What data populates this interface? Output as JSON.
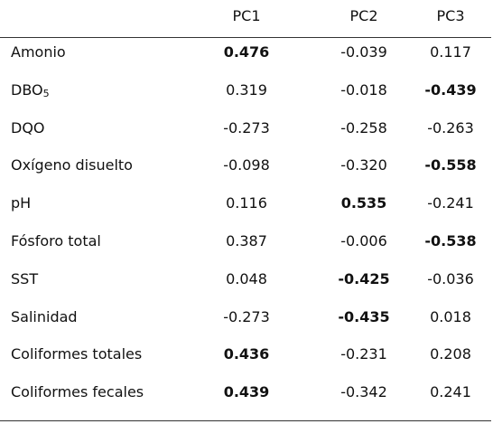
{
  "table": {
    "columns": [
      "",
      "PC1",
      "PC2",
      "PC3"
    ],
    "rows": [
      {
        "label": "Amonio",
        "sub": "",
        "values": [
          "0.476",
          "-0.039",
          "0.117"
        ],
        "bold": [
          true,
          false,
          false
        ]
      },
      {
        "label": "DBO",
        "sub": "5",
        "values": [
          "0.319",
          "-0.018",
          "-0.439"
        ],
        "bold": [
          false,
          false,
          true
        ]
      },
      {
        "label": "DQO",
        "sub": "",
        "values": [
          "-0.273",
          "-0.258",
          "-0.263"
        ],
        "bold": [
          false,
          false,
          false
        ]
      },
      {
        "label": "Oxígeno disuelto",
        "sub": "",
        "values": [
          "-0.098",
          "-0.320",
          "-0.558"
        ],
        "bold": [
          false,
          false,
          true
        ]
      },
      {
        "label": "pH",
        "sub": "",
        "values": [
          "0.116",
          "0.535",
          "-0.241"
        ],
        "bold": [
          false,
          true,
          false
        ]
      },
      {
        "label": "Fósforo total",
        "sub": "",
        "values": [
          "0.387",
          "-0.006",
          "-0.538"
        ],
        "bold": [
          false,
          false,
          true
        ]
      },
      {
        "label": "SST",
        "sub": "",
        "values": [
          "0.048",
          "-0.425",
          "-0.036"
        ],
        "bold": [
          false,
          true,
          false
        ]
      },
      {
        "label": "Salinidad",
        "sub": "",
        "values": [
          "-0.273",
          "-0.435",
          "0.018"
        ],
        "bold": [
          false,
          true,
          false
        ]
      },
      {
        "label": "Coliformes totales",
        "sub": "",
        "values": [
          "0.436",
          "-0.231",
          "0.208"
        ],
        "bold": [
          true,
          false,
          false
        ]
      },
      {
        "label": "Coliformes fecales",
        "sub": "",
        "values": [
          "0.439",
          "-0.342",
          "0.241"
        ],
        "bold": [
          true,
          false,
          false
        ]
      }
    ]
  }
}
